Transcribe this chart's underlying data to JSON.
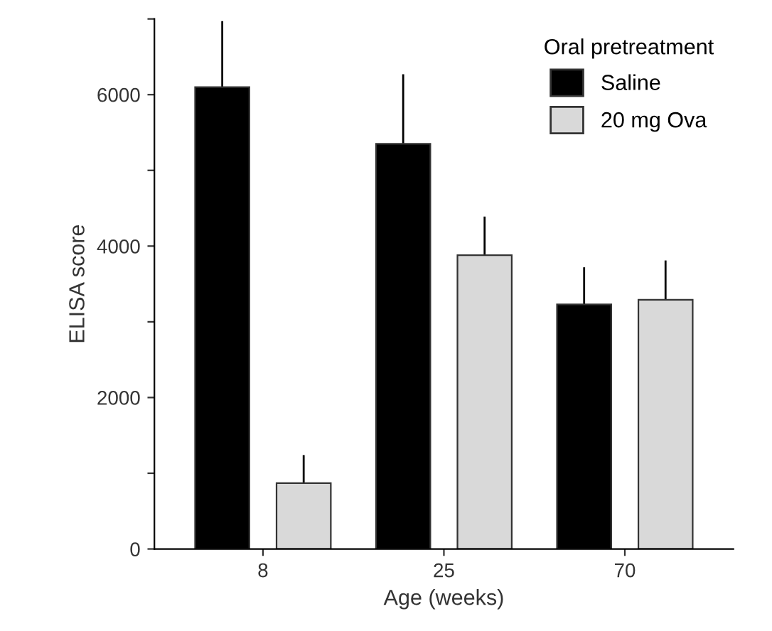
{
  "chart_data": {
    "type": "bar",
    "xlabel": "Age (weeks)",
    "ylabel": "ELISA score",
    "legend_title": "Oral pretreatment",
    "categories": [
      "8",
      "25",
      "70"
    ],
    "series": [
      {
        "name": "Saline",
        "color": "#000000",
        "values": [
          6100,
          5350,
          3230
        ],
        "errors": [
          [
            6100,
            6970
          ],
          [
            5350,
            6270
          ],
          [
            3230,
            3720
          ]
        ]
      },
      {
        "name": "20 mg Ova",
        "color": "#d9d9d9",
        "values": [
          870,
          3880,
          3290
        ],
        "errors": [
          [
            870,
            1240
          ],
          [
            3880,
            4390
          ],
          [
            3290,
            3810
          ]
        ]
      }
    ],
    "ylim": [
      0,
      7000
    ],
    "yticks": [
      0,
      {
        "value": 1000,
        "label": null
      },
      2000,
      {
        "value": 3000,
        "label": null
      },
      4000,
      {
        "value": 5000,
        "label": null
      },
      6000,
      {
        "value": 7000,
        "label": null
      }
    ],
    "legend": "top right",
    "grid": false
  }
}
